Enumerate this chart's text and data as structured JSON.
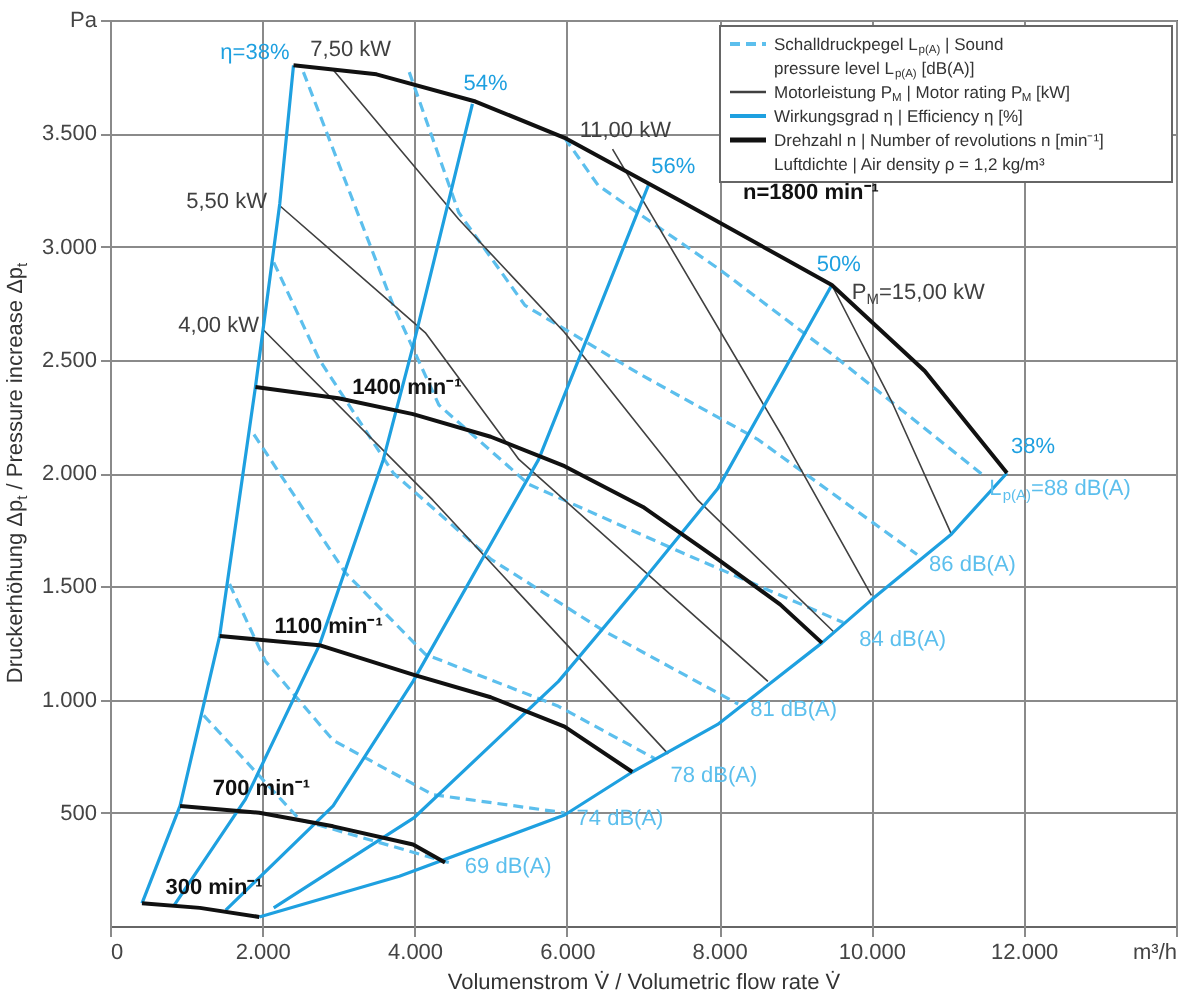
{
  "chart_data": {
    "type": "line",
    "xlabel": "Volumenstrom V̇ / Volumetric flow rate V̇",
    "ylabel": "Druckerhöhung Δp$_{t}$ / Pressure increase Δp$_{t}$",
    "xlim": [
      0,
      14000
    ],
    "ylim": [
      0,
      4000
    ],
    "xticks": [
      0,
      {
        "value": 2000,
        "label": "2.000"
      },
      {
        "value": 4000,
        "label": "4.000"
      },
      {
        "value": 6000,
        "label": "6.000"
      },
      {
        "value": 8000,
        "label": "8.000"
      },
      {
        "value": 10000,
        "label": "10.000"
      },
      {
        "value": 12000,
        "label": "12.000"
      },
      {
        "value": 14000,
        "label": "m³/h"
      }
    ],
    "yticks": [
      500,
      {
        "value": 1000,
        "label": "1.000"
      },
      {
        "value": 1500,
        "label": "1.500"
      },
      {
        "value": 2000,
        "label": "2.000"
      },
      {
        "value": 2500,
        "label": "2.500"
      },
      {
        "value": 3000,
        "label": "3.000"
      },
      {
        "value": 3500,
        "label": "3.500"
      },
      {
        "value": 4000,
        "label": "Pa"
      }
    ],
    "grid": true,
    "legend": "top right",
    "annotations": [
      "Schalldruckpegel L$_{p(A)}$ | Sound pressure level L$_{p(A)}$ [dB(A)]",
      "Motorleistung P$_{M}$ | Motor rating P$_{M}$ [kW]",
      "Wirkungsgrad η | Efficiency η [%]",
      "Drehzahl n | Number of revolutions n [min⁻¹]",
      "Luftdichte | Air density ρ = 1,2 kg/m³"
    ],
    "series": [
      {
        "name": "L$_{p(A)}$=88 dB(A)",
        "color": "#5cbfed",
        "line_style": "dashed",
        "x": [
          5970,
          6410,
          8000,
          9500,
          11470
        ],
        "values": [
          3480,
          3270,
          2900,
          2520,
          1990
        ]
      },
      {
        "name": "86 dB(A)",
        "color": "#5cbfed",
        "line_style": "dashed",
        "x": [
          3930,
          4580,
          5450,
          6940,
          8500,
          10600
        ],
        "values": [
          3770,
          3150,
          2740,
          2440,
          2150,
          1640
        ]
      },
      {
        "name": "84 dB(A)",
        "color": "#5cbfed",
        "line_style": "dashed",
        "x": [
          2540,
          3720,
          4320,
          5500,
          7500,
          9630
        ],
        "values": [
          3770,
          2740,
          2300,
          1950,
          1650,
          1340
        ]
      },
      {
        "name": "81 dB(A)",
        "color": "#5cbfed",
        "line_style": "dashed",
        "x": [
          2150,
          2750,
          3720,
          5000,
          6500,
          8250
        ],
        "values": [
          2930,
          2500,
          2000,
          1620,
          1300,
          980
        ]
      },
      {
        "name": "78 dB(A)",
        "color": "#5cbfed",
        "line_style": "dashed",
        "x": [
          1890,
          3090,
          4140,
          5890,
          7150
        ],
        "values": [
          2170,
          1560,
          1200,
          970,
          740
        ]
      },
      {
        "name": "74 dB(A)",
        "color": "#5cbfed",
        "line_style": "dashed",
        "x": [
          1570,
          2040,
          2930,
          4240,
          5970
        ],
        "values": [
          1510,
          1170,
          820,
          580,
          500
        ]
      },
      {
        "name": "69 dB(A)",
        "color": "#5cbfed",
        "line_style": "dashed",
        "x": [
          1230,
          2490,
          4450
        ],
        "values": [
          930,
          470,
          280
        ]
      },
      {
        "name": "P$_{M}$=15,00 kW",
        "color": "#404040",
        "line_style": "solid",
        "x": [
          9480,
          10260,
          11050
        ],
        "values": [
          2830,
          2320,
          1730
        ]
      },
      {
        "name": "11,00 kW",
        "color": "#404040",
        "line_style": "solid",
        "x": [
          6600,
          8850,
          10000
        ],
        "values": [
          3430,
          2150,
          1460
        ]
      },
      {
        "name": "7,50 kW",
        "color": "#404040",
        "line_style": "solid",
        "x": [
          2930,
          4580,
          5970,
          7720,
          9500
        ],
        "values": [
          3780,
          3120,
          2620,
          1880,
          1300
        ]
      },
      {
        "name": "5,50 kW",
        "color": "#404040",
        "line_style": "solid",
        "x": [
          2230,
          4140,
          5370,
          8640
        ],
        "values": [
          3180,
          2620,
          2060,
          1080
        ]
      },
      {
        "name": "4,00 kW",
        "color": "#404040",
        "line_style": "solid",
        "x": [
          2020,
          4240,
          7330
        ],
        "values": [
          2630,
          1880,
          760
        ]
      },
      {
        "name": "η=38%",
        "color": "#1ea0e0",
        "line_style": "solid",
        "x": [
          420,
          920,
          1440,
          1910,
          2230,
          2410
        ],
        "values": [
          100,
          530,
          1280,
          2380,
          3190,
          3800
        ]
      },
      {
        "name": "54%",
        "color": "#1ea0e0",
        "line_style": "solid",
        "x": [
          840,
          1780,
          2750,
          3590,
          3980,
          4760
        ],
        "values": [
          90,
          560,
          1240,
          2060,
          2560,
          3630
        ]
      },
      {
        "name": "56%",
        "color": "#1ea0e0",
        "line_style": "solid",
        "x": [
          1520,
          2930,
          3980,
          5630,
          7070
        ],
        "values": [
          70,
          530,
          1080,
          2060,
          3270
        ]
      },
      {
        "name": "50%",
        "color": "#1ea0e0",
        "line_style": "solid",
        "x": [
          2150,
          4000,
          5890,
          6940,
          7980,
          9480
        ],
        "values": [
          80,
          480,
          1080,
          1500,
          1930,
          2830
        ]
      },
      {
        "name": "38%",
        "color": "#1ea0e0",
        "line_style": "solid",
        "x": [
          1960,
          3800,
          5970,
          6860,
          7980,
          9350,
          10000,
          11050,
          11780
        ],
        "values": [
          40,
          220,
          490,
          680,
          890,
          1250,
          1440,
          1730,
          2000
        ]
      },
      {
        "name": "n=1800 min⁻¹",
        "color": "#111111",
        "line_style": "solid",
        "x": [
          2410,
          3500,
          4800,
          5970,
          7500,
          9480,
          10700,
          11780
        ],
        "values": [
          3800,
          3760,
          3640,
          3480,
          3200,
          2830,
          2450,
          2000
        ]
      },
      {
        "name": "1400 min⁻¹",
        "color": "#111111",
        "line_style": "solid",
        "x": [
          1910,
          3000,
          3980,
          5000,
          5970,
          7000,
          7980,
          8800,
          9350
        ],
        "values": [
          2380,
          2330,
          2260,
          2160,
          2030,
          1850,
          1620,
          1420,
          1250
        ]
      },
      {
        "name": "1100 min⁻¹",
        "color": "#111111",
        "line_style": "solid",
        "x": [
          1440,
          2750,
          3980,
          5000,
          5970,
          6860
        ],
        "values": [
          1280,
          1240,
          1110,
          1010,
          880,
          680
        ]
      },
      {
        "name": "700 min⁻¹",
        "color": "#111111",
        "line_style": "solid",
        "x": [
          920,
          1960,
          2930,
          3980,
          4400
        ],
        "values": [
          530,
          500,
          440,
          360,
          280
        ]
      },
      {
        "name": "300 min⁻¹",
        "color": "#111111",
        "line_style": "solid",
        "x": [
          420,
          1180,
          1960
        ],
        "values": [
          100,
          80,
          40
        ]
      }
    ]
  }
}
